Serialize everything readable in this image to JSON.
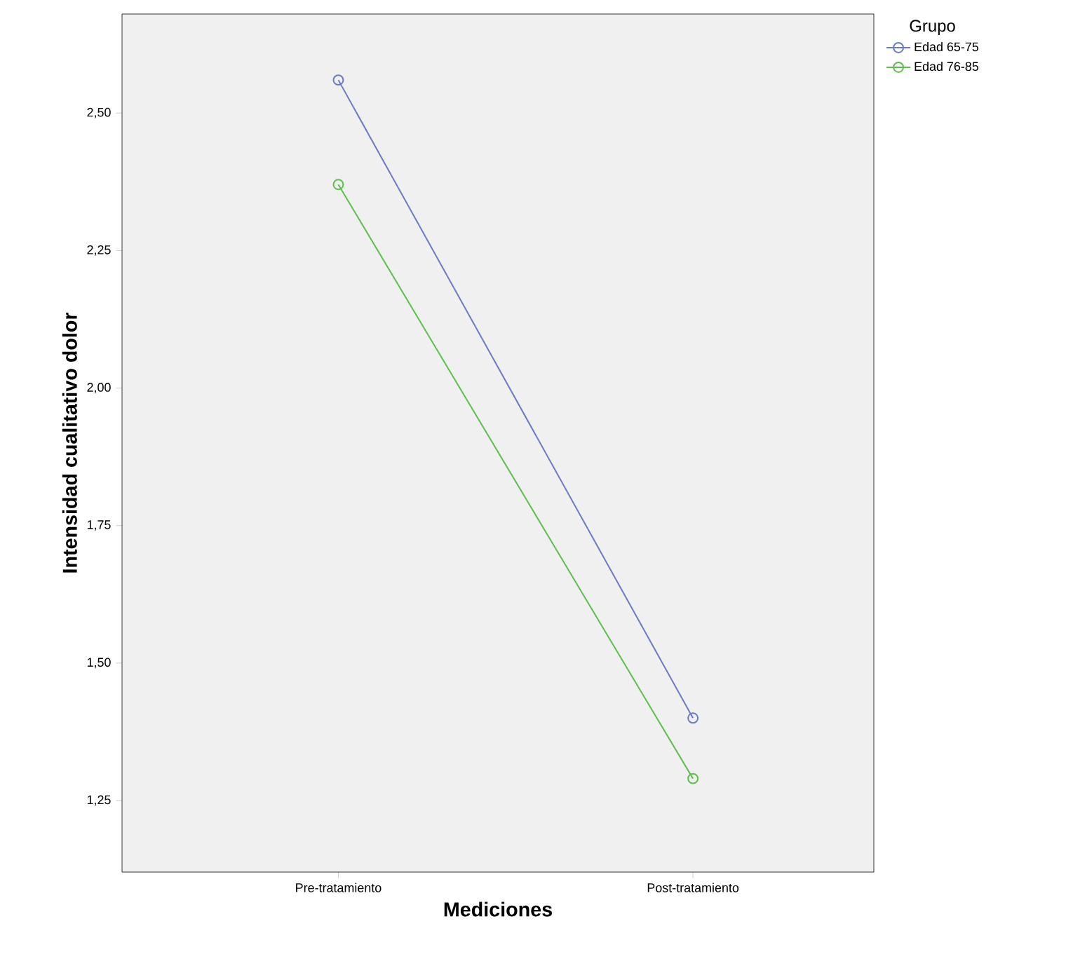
{
  "chart_data": {
    "type": "line",
    "xlabel": "Mediciones",
    "ylabel": "Intensidad cualitativo dolor",
    "legend_title": "Grupo",
    "categories": [
      "Pre-tratamiento",
      "Post-tratamiento"
    ],
    "series": [
      {
        "name": "Edad 65-75",
        "color": "#6a79c6",
        "values": [
          2.56,
          1.4
        ]
      },
      {
        "name": "Edad 76-85",
        "color": "#5cbf4a",
        "values": [
          2.37,
          1.29
        ]
      }
    ],
    "ylim": [
      1.12,
      2.68
    ],
    "yticks": [
      {
        "value": 1.25,
        "label": "1,25"
      },
      {
        "value": 1.5,
        "label": "1,50"
      },
      {
        "value": 1.75,
        "label": "1,75"
      },
      {
        "value": 2.0,
        "label": "2,00"
      },
      {
        "value": 2.25,
        "label": "2,25"
      },
      {
        "value": 2.5,
        "label": "2,50"
      }
    ],
    "marker": "circle",
    "line_style": "solid",
    "grid": false,
    "legend": "top right"
  }
}
